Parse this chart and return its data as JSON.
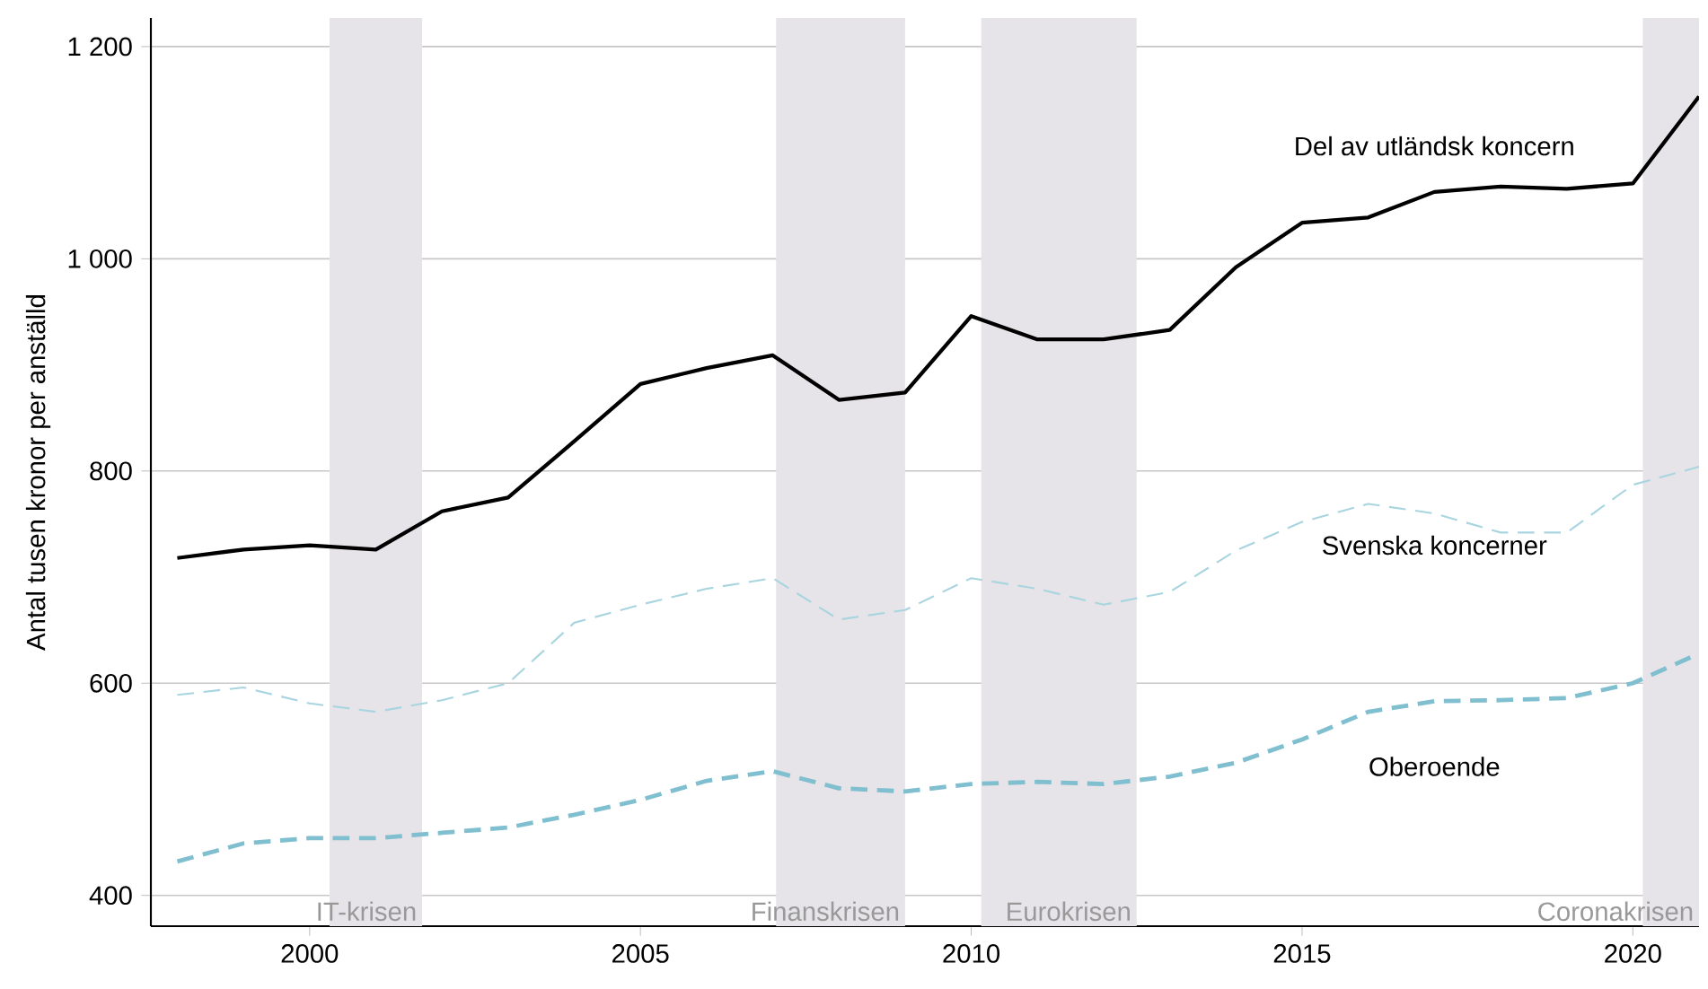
{
  "chart_data": {
    "type": "line",
    "ylabel": "Antal tusen kronor per anställd",
    "x": [
      1998,
      1999,
      2000,
      2001,
      2002,
      2003,
      2004,
      2005,
      2006,
      2007,
      2008,
      2009,
      2010,
      2011,
      2012,
      2013,
      2014,
      2015,
      2016,
      2017,
      2018,
      2019,
      2020,
      2021
    ],
    "series": [
      {
        "name": "Del av utländsk koncern",
        "color": "#000000",
        "line_style": "solid",
        "values": [
          718,
          726,
          730,
          726,
          762,
          775,
          828,
          882,
          897,
          909,
          867,
          874,
          946,
          924,
          924,
          933,
          992,
          1034,
          1039,
          1063,
          1068,
          1066,
          1071,
          1153
        ]
      },
      {
        "name": "Svenska koncerner",
        "color": "#a8d5df",
        "line_style": "dashed",
        "values": [
          589,
          596,
          581,
          573,
          584,
          600,
          657,
          674,
          689,
          699,
          660,
          669,
          699,
          689,
          674,
          686,
          725,
          752,
          769,
          760,
          742,
          742,
          787,
          804
        ]
      },
      {
        "name": "Oberoende",
        "color": "#7fbfcf",
        "line_style": "dashed",
        "values": [
          432,
          449,
          454,
          454,
          459,
          464,
          476,
          490,
          508,
          517,
          501,
          498,
          505,
          507,
          505,
          512,
          525,
          547,
          573,
          583,
          584,
          586,
          600,
          628
        ]
      }
    ],
    "xlim": [
      1997.6,
      2021
    ],
    "xticks": [
      2000,
      2005,
      2010,
      2015,
      2020
    ],
    "ylim": [
      371,
      1227
    ],
    "yticks": [
      400,
      600,
      800,
      {
        "value": 1000,
        "label": "1 000"
      },
      {
        "value": 1200,
        "label": "1 200"
      }
    ],
    "grid": "y",
    "bands": [
      {
        "axis": "x",
        "from": 2000.3,
        "to": 2001.7,
        "label": "IT-krisen",
        "color": "#e6e4e8"
      },
      {
        "axis": "x",
        "from": 2007.05,
        "to": 2009.0,
        "label": "Finanskrisen",
        "color": "#e6e4e8"
      },
      {
        "axis": "x",
        "from": 2010.15,
        "to": 2012.5,
        "label": "Eurokrisen",
        "color": "#e6e4e8"
      },
      {
        "axis": "x",
        "from": 2020.15,
        "to": 2021,
        "label": "Coronakrisen",
        "color": "#e6e4e8"
      }
    ]
  }
}
